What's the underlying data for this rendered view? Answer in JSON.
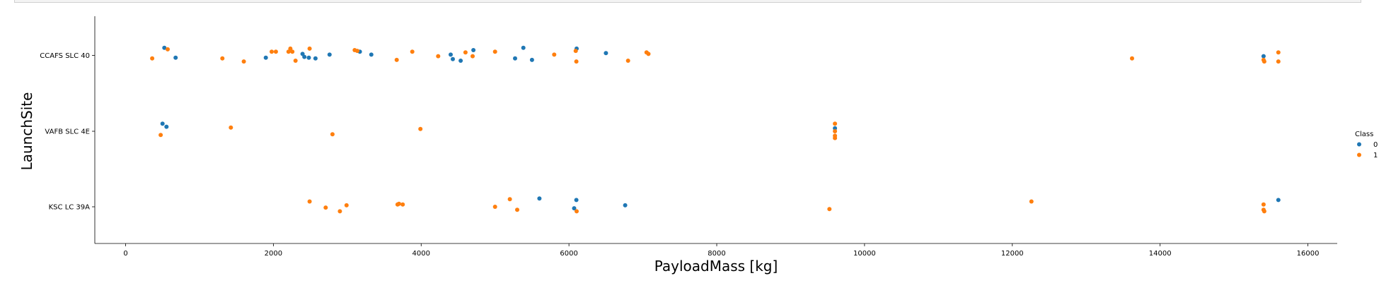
{
  "chart_data": {
    "type": "scatter",
    "title": "",
    "xlabel": "PayloadMass [kg]",
    "ylabel": "LaunchSite",
    "xlim": [
      -400,
      16350
    ],
    "xticks": [
      0,
      2000,
      4000,
      6000,
      8000,
      10000,
      12000,
      14000,
      16000
    ],
    "categories": [
      "CCAFS SLC 40",
      "VAFB SLC 4E",
      "KSC LC 39A"
    ],
    "legend": {
      "title": "Class",
      "labels": [
        "0",
        "1"
      ],
      "position": "right"
    },
    "colors": {
      "0": "#1f77b4",
      "1": "#ff7f0e"
    },
    "grid": false,
    "points": [
      {
        "x": 525,
        "site": "CCAFS SLC 40",
        "class": 0,
        "j": -0.1
      },
      {
        "x": 677,
        "site": "CCAFS SLC 40",
        "class": 0,
        "j": 0.03
      },
      {
        "x": 1898,
        "site": "CCAFS SLC 40",
        "class": 0,
        "j": 0.03
      },
      {
        "x": 2395,
        "site": "CCAFS SLC 40",
        "class": 0,
        "j": -0.02
      },
      {
        "x": 2420,
        "site": "CCAFS SLC 40",
        "class": 0,
        "j": 0.02
      },
      {
        "x": 2480,
        "site": "CCAFS SLC 40",
        "class": 0,
        "j": 0.03
      },
      {
        "x": 2570,
        "site": "CCAFS SLC 40",
        "class": 0,
        "j": 0.04
      },
      {
        "x": 2760,
        "site": "CCAFS SLC 40",
        "class": 0,
        "j": -0.01
      },
      {
        "x": 3170,
        "site": "CCAFS SLC 40",
        "class": 0,
        "j": -0.05
      },
      {
        "x": 3325,
        "site": "CCAFS SLC 40",
        "class": 0,
        "j": -0.01
      },
      {
        "x": 4400,
        "site": "CCAFS SLC 40",
        "class": 0,
        "j": -0.01
      },
      {
        "x": 4428,
        "site": "CCAFS SLC 40",
        "class": 0,
        "j": 0.05
      },
      {
        "x": 4535,
        "site": "CCAFS SLC 40",
        "class": 0,
        "j": 0.07
      },
      {
        "x": 4707,
        "site": "CCAFS SLC 40",
        "class": 0,
        "j": -0.07
      },
      {
        "x": 5271,
        "site": "CCAFS SLC 40",
        "class": 0,
        "j": 0.04
      },
      {
        "x": 5383,
        "site": "CCAFS SLC 40",
        "class": 0,
        "j": -0.1
      },
      {
        "x": 5500,
        "site": "CCAFS SLC 40",
        "class": 0,
        "j": 0.06
      },
      {
        "x": 6104,
        "site": "CCAFS SLC 40",
        "class": 0,
        "j": -0.09
      },
      {
        "x": 6500,
        "site": "CCAFS SLC 40",
        "class": 0,
        "j": -0.03
      },
      {
        "x": 15400,
        "site": "CCAFS SLC 40",
        "class": 0,
        "j": 0.01
      },
      {
        "x": 360,
        "site": "CCAFS SLC 40",
        "class": 1,
        "j": 0.04
      },
      {
        "x": 570,
        "site": "CCAFS SLC 40",
        "class": 1,
        "j": -0.08
      },
      {
        "x": 1310,
        "site": "CCAFS SLC 40",
        "class": 1,
        "j": 0.04
      },
      {
        "x": 1600,
        "site": "CCAFS SLC 40",
        "class": 1,
        "j": 0.08
      },
      {
        "x": 1977,
        "site": "CCAFS SLC 40",
        "class": 1,
        "j": -0.05
      },
      {
        "x": 2034,
        "site": "CCAFS SLC 40",
        "class": 1,
        "j": -0.05
      },
      {
        "x": 2205,
        "site": "CCAFS SLC 40",
        "class": 1,
        "j": -0.05
      },
      {
        "x": 2230,
        "site": "CCAFS SLC 40",
        "class": 1,
        "j": -0.09
      },
      {
        "x": 2257,
        "site": "CCAFS SLC 40",
        "class": 1,
        "j": -0.05
      },
      {
        "x": 2300,
        "site": "CCAFS SLC 40",
        "class": 1,
        "j": 0.07
      },
      {
        "x": 2490,
        "site": "CCAFS SLC 40",
        "class": 1,
        "j": -0.09
      },
      {
        "x": 3100,
        "site": "CCAFS SLC 40",
        "class": 1,
        "j": -0.07
      },
      {
        "x": 3136,
        "site": "CCAFS SLC 40",
        "class": 1,
        "j": -0.06
      },
      {
        "x": 3669,
        "site": "CCAFS SLC 40",
        "class": 1,
        "j": 0.06
      },
      {
        "x": 3880,
        "site": "CCAFS SLC 40",
        "class": 1,
        "j": -0.05
      },
      {
        "x": 4230,
        "site": "CCAFS SLC 40",
        "class": 1,
        "j": 0.01
      },
      {
        "x": 4600,
        "site": "CCAFS SLC 40",
        "class": 1,
        "j": -0.04
      },
      {
        "x": 4696,
        "site": "CCAFS SLC 40",
        "class": 1,
        "j": 0.01
      },
      {
        "x": 5000,
        "site": "CCAFS SLC 40",
        "class": 1,
        "j": -0.05
      },
      {
        "x": 5800,
        "site": "CCAFS SLC 40",
        "class": 1,
        "j": -0.01
      },
      {
        "x": 6092,
        "site": "CCAFS SLC 40",
        "class": 1,
        "j": -0.06
      },
      {
        "x": 6100,
        "site": "CCAFS SLC 40",
        "class": 1,
        "j": 0.08
      },
      {
        "x": 6800,
        "site": "CCAFS SLC 40",
        "class": 1,
        "j": 0.07
      },
      {
        "x": 7050,
        "site": "CCAFS SLC 40",
        "class": 1,
        "j": -0.04
      },
      {
        "x": 7076,
        "site": "CCAFS SLC 40",
        "class": 1,
        "j": -0.02
      },
      {
        "x": 13620,
        "site": "CCAFS SLC 40",
        "class": 1,
        "j": 0.04
      },
      {
        "x": 15400,
        "site": "CCAFS SLC 40",
        "class": 1,
        "j": 0.06
      },
      {
        "x": 15410,
        "site": "CCAFS SLC 40",
        "class": 1,
        "j": 0.08
      },
      {
        "x": 15600,
        "site": "CCAFS SLC 40",
        "class": 1,
        "j": -0.04
      },
      {
        "x": 15600,
        "site": "CCAFS SLC 40",
        "class": 1,
        "j": 0.08
      },
      {
        "x": 500,
        "site": "VAFB SLC 4E",
        "class": 0,
        "j": -0.1
      },
      {
        "x": 553,
        "site": "VAFB SLC 4E",
        "class": 0,
        "j": -0.06
      },
      {
        "x": 9600,
        "site": "VAFB SLC 4E",
        "class": 0,
        "j": -0.04
      },
      {
        "x": 475,
        "site": "VAFB SLC 4E",
        "class": 1,
        "j": 0.05
      },
      {
        "x": 1425,
        "site": "VAFB SLC 4E",
        "class": 1,
        "j": -0.05
      },
      {
        "x": 2800,
        "site": "VAFB SLC 4E",
        "class": 1,
        "j": 0.04
      },
      {
        "x": 3990,
        "site": "VAFB SLC 4E",
        "class": 1,
        "j": -0.03
      },
      {
        "x": 9600,
        "site": "VAFB SLC 4E",
        "class": 1,
        "j": -0.1
      },
      {
        "x": 9600,
        "site": "VAFB SLC 4E",
        "class": 1,
        "j": 0.0
      },
      {
        "x": 9600,
        "site": "VAFB SLC 4E",
        "class": 1,
        "j": 0.06
      },
      {
        "x": 9600,
        "site": "VAFB SLC 4E",
        "class": 1,
        "j": 0.09
      },
      {
        "x": 5600,
        "site": "KSC LC 39A",
        "class": 0,
        "j": -0.11
      },
      {
        "x": 6100,
        "site": "KSC LC 39A",
        "class": 0,
        "j": -0.09
      },
      {
        "x": 6070,
        "site": "KSC LC 39A",
        "class": 0,
        "j": 0.02
      },
      {
        "x": 6761,
        "site": "KSC LC 39A",
        "class": 0,
        "j": -0.02
      },
      {
        "x": 15600,
        "site": "KSC LC 39A",
        "class": 0,
        "j": -0.09
      },
      {
        "x": 2490,
        "site": "KSC LC 39A",
        "class": 1,
        "j": -0.07
      },
      {
        "x": 2708,
        "site": "KSC LC 39A",
        "class": 1,
        "j": 0.01
      },
      {
        "x": 2900,
        "site": "KSC LC 39A",
        "class": 1,
        "j": 0.06
      },
      {
        "x": 2990,
        "site": "KSC LC 39A",
        "class": 1,
        "j": -0.02
      },
      {
        "x": 3681,
        "site": "KSC LC 39A",
        "class": 1,
        "j": -0.03
      },
      {
        "x": 3700,
        "site": "KSC LC 39A",
        "class": 1,
        "j": -0.04
      },
      {
        "x": 3750,
        "site": "KSC LC 39A",
        "class": 1,
        "j": -0.03
      },
      {
        "x": 5000,
        "site": "KSC LC 39A",
        "class": 1,
        "j": 0.0
      },
      {
        "x": 5200,
        "site": "KSC LC 39A",
        "class": 1,
        "j": -0.1
      },
      {
        "x": 5300,
        "site": "KSC LC 39A",
        "class": 1,
        "j": 0.04
      },
      {
        "x": 6104,
        "site": "KSC LC 39A",
        "class": 1,
        "j": 0.06
      },
      {
        "x": 9525,
        "site": "KSC LC 39A",
        "class": 1,
        "j": 0.03
      },
      {
        "x": 12259,
        "site": "KSC LC 39A",
        "class": 1,
        "j": -0.07
      },
      {
        "x": 15400,
        "site": "KSC LC 39A",
        "class": 1,
        "j": -0.03
      },
      {
        "x": 15400,
        "site": "KSC LC 39A",
        "class": 1,
        "j": 0.04
      },
      {
        "x": 15410,
        "site": "KSC LC 39A",
        "class": 1,
        "j": 0.06
      }
    ]
  }
}
